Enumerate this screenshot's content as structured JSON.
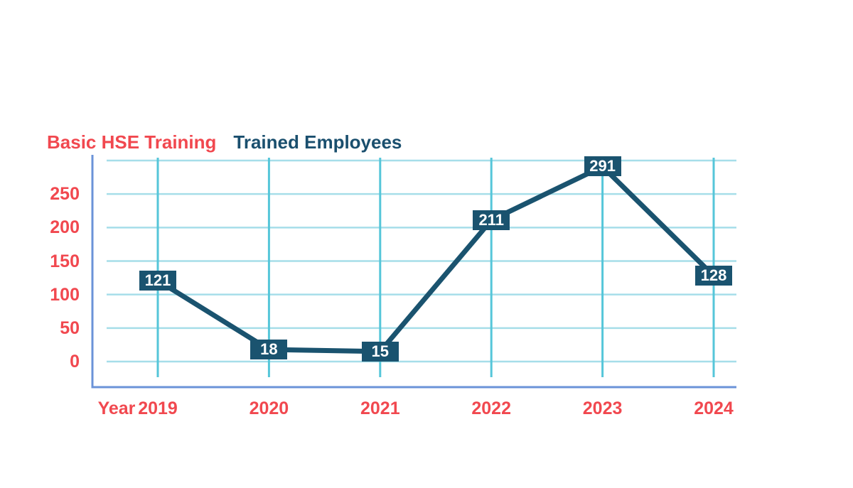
{
  "chart_data": {
    "type": "line",
    "title": "Basic HSE Training",
    "legend": "Trained Employees",
    "xlabel": "Year",
    "categories": [
      "2019",
      "2020",
      "2021",
      "2022",
      "2023",
      "2024"
    ],
    "series": [
      {
        "name": "Trained Employees",
        "values": [
          121,
          18,
          15,
          211,
          291,
          128
        ]
      }
    ],
    "yticks": [
      0,
      50,
      100,
      150,
      200,
      250
    ],
    "ylim": [
      0,
      300
    ],
    "grid": true,
    "legend_position": "top",
    "data_labels": true,
    "colors": {
      "series_line": "#1a536f",
      "label_box_bg": "#1a536f",
      "label_text": "#ffffff",
      "axis_text": "#f1484f",
      "title_series": "#f1484f",
      "title_legend": "#1a4f6e",
      "gridline_horizontal": "#a6dee9",
      "gridline_vertical": "#55c6d9",
      "axis_line": "#6b93d8"
    }
  }
}
